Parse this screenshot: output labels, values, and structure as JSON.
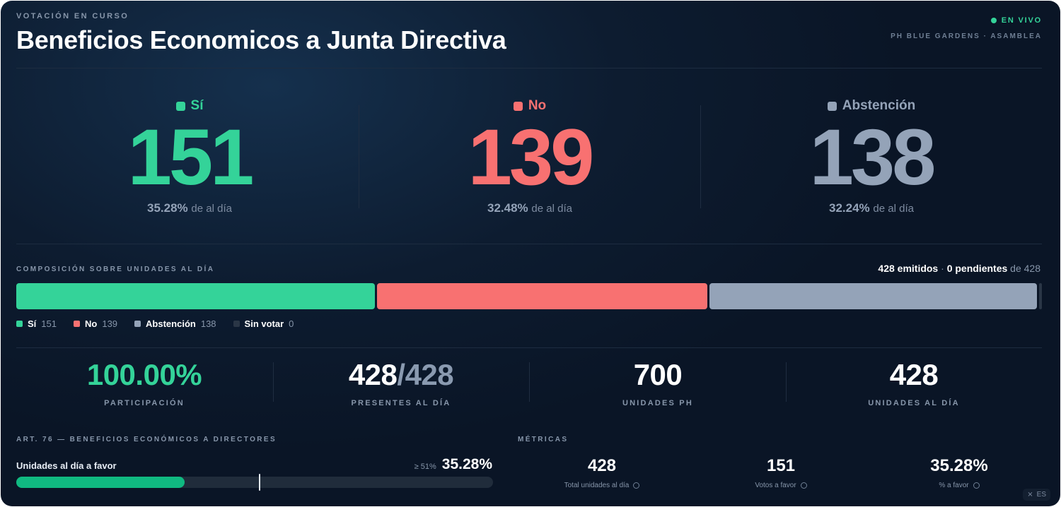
{
  "header": {
    "eyebrow": "VOTACIÓN EN CURSO",
    "title": "Beneficios Economicos a Junta Directiva",
    "live_label": "EN VIVO",
    "org": "PH BLUE GARDENS · ASAMBLEA"
  },
  "options": [
    {
      "label": "Sí",
      "count": "151",
      "pct": "35.28%",
      "suffix": "de al día",
      "color": "#34d399"
    },
    {
      "label": "No",
      "count": "139",
      "pct": "32.48%",
      "suffix": "de al día",
      "color": "#f87171"
    },
    {
      "label": "Abstención",
      "count": "138",
      "pct": "32.24%",
      "suffix": "de al día",
      "color": "#94a3b8"
    }
  ],
  "composition": {
    "title": "COMPOSICIÓN SOBRE UNIDADES AL DÍA",
    "cast": "428 emitidos",
    "sep": "·",
    "pending": "0 pendientes",
    "of": "de 428",
    "segments": [
      {
        "value": 151,
        "color": "#34d399"
      },
      {
        "value": 139,
        "color": "#f87171"
      },
      {
        "value": 138,
        "color": "#94a3b8"
      },
      {
        "value": 0,
        "color": "#2a3646"
      }
    ],
    "legend": [
      {
        "label": "Sí",
        "count": "151",
        "color": "#34d399"
      },
      {
        "label": "No",
        "count": "139",
        "color": "#f87171"
      },
      {
        "label": "Abstención",
        "count": "138",
        "color": "#94a3b8"
      },
      {
        "label": "Sin votar",
        "count": "0",
        "color": "#2a3646"
      }
    ]
  },
  "stats": {
    "participation": {
      "value": "100.00%",
      "label": "PARTICIPACIÓN"
    },
    "present": {
      "value": "428",
      "slash": "/",
      "total": "428",
      "label": "PRESENTES AL DÍA"
    },
    "units_ph": {
      "value": "700",
      "label": "UNIDADES PH"
    },
    "units_day": {
      "value": "428",
      "label": "UNIDADES AL DÍA"
    }
  },
  "article": {
    "title": "ART. 76 — BENEFICIOS ECONÓMICOS A DIRECTORES",
    "row_label": "Unidades al día a favor",
    "threshold_label": "≥ 51%",
    "value": "35.28%",
    "progress": 0.3528,
    "threshold": 0.51
  },
  "metrics": {
    "title": "MÉTRICAS",
    "items": [
      {
        "value": "428",
        "label": "Total unidades al día"
      },
      {
        "value": "151",
        "label": "Votos a favor"
      },
      {
        "value": "35.28%",
        "label": "% a favor"
      }
    ]
  },
  "footer": {
    "lang": "ES"
  },
  "icons": {
    "live": "live-dot-icon",
    "info": "info-icon",
    "lang": "translate-icon"
  }
}
